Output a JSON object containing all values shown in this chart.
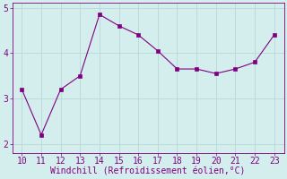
{
  "x": [
    10,
    11,
    12,
    13,
    14,
    15,
    16,
    17,
    18,
    19,
    20,
    21,
    22,
    23
  ],
  "y": [
    3.2,
    2.2,
    3.2,
    3.5,
    4.85,
    4.6,
    4.4,
    4.05,
    3.65,
    3.65,
    3.55,
    3.65,
    3.8,
    4.4
  ],
  "line_color": "#800080",
  "marker_color": "#800080",
  "background_color": "#d4eeee",
  "grid_color": "#b8d8d8",
  "xlabel": "Windchill (Refroidissement éolien,°C)",
  "xlabel_color": "#800080",
  "tick_color": "#800080",
  "spine_color": "#800080",
  "ylim": [
    1.8,
    5.1
  ],
  "xlim": [
    9.5,
    23.5
  ],
  "yticks": [
    2,
    3,
    4,
    5
  ],
  "xticks": [
    10,
    11,
    12,
    13,
    14,
    15,
    16,
    17,
    18,
    19,
    20,
    21,
    22,
    23
  ],
  "label_fontsize": 7,
  "tick_fontsize": 7
}
